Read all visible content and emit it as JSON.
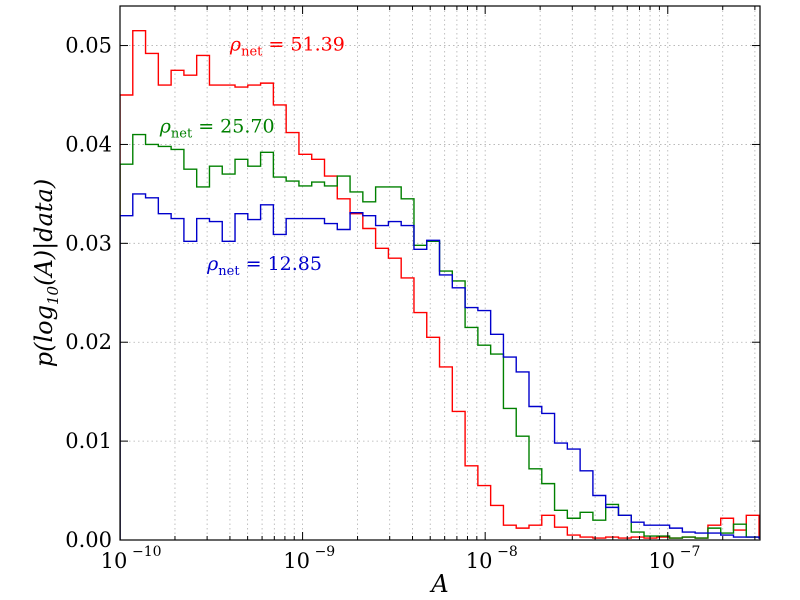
{
  "chart_data": {
    "type": "histogram-step",
    "xlabel": "A",
    "ylabel": "p(log10(A)|data)",
    "x_scale": "log",
    "xlim": [
      1e-10,
      3.2e-07
    ],
    "ylim": [
      0,
      0.054
    ],
    "grid": true,
    "x_ticks": [
      {
        "value": 1e-10,
        "label": "10",
        "exp": "−10"
      },
      {
        "value": 1e-09,
        "label": "10",
        "exp": "−9"
      },
      {
        "value": 1e-08,
        "label": "10",
        "exp": "−8"
      },
      {
        "value": 1e-07,
        "label": "10",
        "exp": "−7"
      }
    ],
    "y_ticks": [
      {
        "value": 0.0,
        "label": "0.00"
      },
      {
        "value": 0.01,
        "label": "0.01"
      },
      {
        "value": 0.02,
        "label": "0.02"
      },
      {
        "value": 0.03,
        "label": "0.03"
      },
      {
        "value": 0.04,
        "label": "0.04"
      },
      {
        "value": 0.05,
        "label": "0.05"
      }
    ],
    "log10_bin_edges_start": -10.0,
    "log10_bin_width": 0.07,
    "series": [
      {
        "name": "ρnet = 51.39",
        "annotation": {
          "symbol": "ρ",
          "sub": "net",
          "text": " = 51.39",
          "x": 4e-10,
          "y": 0.0495
        },
        "color": "#ff0000",
        "values": [
          0.045,
          0.0515,
          0.0492,
          0.046,
          0.0475,
          0.047,
          0.049,
          0.046,
          0.046,
          0.0458,
          0.046,
          0.0462,
          0.044,
          0.0412,
          0.039,
          0.0385,
          0.0368,
          0.0345,
          0.033,
          0.0315,
          0.0295,
          0.0285,
          0.0265,
          0.023,
          0.0205,
          0.0175,
          0.013,
          0.0075,
          0.0055,
          0.0035,
          0.0015,
          0.0012,
          0.0015,
          0.0025,
          0.0013,
          0.0005,
          0.0003,
          0.0002,
          0.0003,
          0.0002,
          0.0003,
          0.0002,
          0.0003,
          0.0002,
          0.0003,
          0.0002,
          0.0015,
          0.0022,
          0.001,
          0.0025,
          0.0002,
          0.0003,
          0.0002,
          0.0003,
          0.0002
        ]
      },
      {
        "name": "ρnet = 25.70",
        "annotation": {
          "symbol": "ρ",
          "sub": "net",
          "text": " = 25.70",
          "x": 1.65e-10,
          "y": 0.0412
        },
        "color": "#008000",
        "values": [
          0.038,
          0.041,
          0.04,
          0.0398,
          0.0395,
          0.0375,
          0.0357,
          0.0378,
          0.037,
          0.0385,
          0.0378,
          0.0392,
          0.0367,
          0.0363,
          0.0358,
          0.0362,
          0.0358,
          0.0368,
          0.0352,
          0.0342,
          0.0357,
          0.0357,
          0.0345,
          0.0298,
          0.0302,
          0.0272,
          0.0262,
          0.0215,
          0.0197,
          0.0188,
          0.0133,
          0.0105,
          0.0072,
          0.0057,
          0.003,
          0.0022,
          0.0028,
          0.002,
          0.0036,
          0.0025,
          0.0008,
          0.0004,
          0.0004,
          0.0002,
          0.0003,
          0.0002,
          0.0012,
          0.0007,
          0.0016,
          0.0003,
          0.0003,
          0.0002,
          0.0003,
          0.0002,
          0.0003
        ]
      },
      {
        "name": "ρnet = 12.85",
        "annotation": {
          "symbol": "ρ",
          "sub": "net",
          "text": " = 12.85",
          "x": 3e-10,
          "y": 0.0273
        },
        "color": "#0000cc",
        "values": [
          0.0328,
          0.035,
          0.0346,
          0.033,
          0.0325,
          0.0302,
          0.0325,
          0.0322,
          0.0302,
          0.033,
          0.0324,
          0.0339,
          0.0309,
          0.0325,
          0.0325,
          0.0325,
          0.032,
          0.0314,
          0.0331,
          0.0328,
          0.0318,
          0.0322,
          0.0318,
          0.0294,
          0.0303,
          0.0268,
          0.0255,
          0.0235,
          0.0232,
          0.0208,
          0.0185,
          0.017,
          0.0135,
          0.0128,
          0.0098,
          0.0092,
          0.007,
          0.0045,
          0.0033,
          0.0025,
          0.0018,
          0.0015,
          0.0015,
          0.0012,
          0.0008,
          0.0007,
          0.0007,
          0.0005,
          0.0003,
          0.0003,
          0.0002,
          0.0003,
          0.0002,
          0.0003,
          0.0002
        ]
      }
    ]
  }
}
